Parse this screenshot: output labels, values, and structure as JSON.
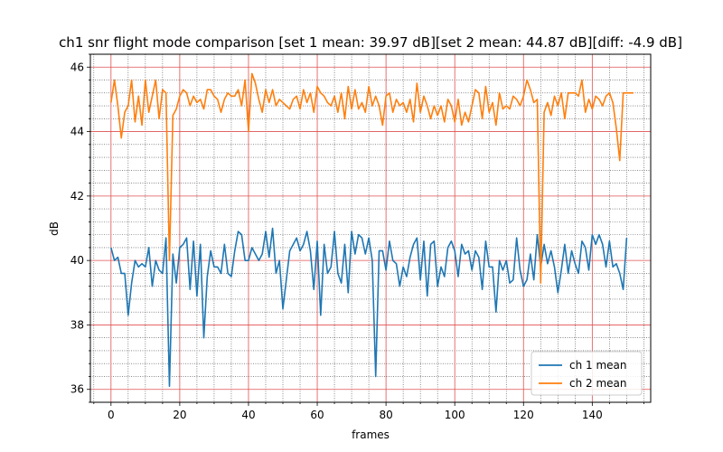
{
  "chart_data": {
    "type": "line",
    "title": "ch1 snr flight mode comparison [set 1 mean: 39.97 dB][set 2 mean: 44.87 dB][diff: -4.9 dB]",
    "xlabel": "frames",
    "ylabel": "dB",
    "xlim": [
      -6,
      157
    ],
    "ylim": [
      35.6,
      46.4
    ],
    "xticks": [
      0,
      20,
      40,
      60,
      80,
      100,
      120,
      140
    ],
    "yticks": [
      36,
      38,
      40,
      42,
      44,
      46
    ],
    "grid": {
      "major": true,
      "minor": true,
      "major_color": "#e05050",
      "minor_color": "#444444"
    },
    "legend_position": "lower-right",
    "series": [
      {
        "name": "ch 1 mean",
        "color": "#1f77b4",
        "values": [
          40.4,
          40.0,
          40.1,
          39.6,
          39.6,
          38.3,
          39.3,
          40.0,
          39.8,
          39.9,
          39.8,
          40.4,
          39.2,
          40.0,
          39.7,
          39.6,
          40.7,
          36.1,
          40.2,
          39.3,
          40.4,
          40.5,
          40.7,
          39.1,
          40.6,
          38.9,
          40.5,
          37.6,
          39.5,
          40.3,
          39.8,
          39.8,
          39.6,
          40.5,
          39.6,
          39.5,
          40.3,
          40.9,
          40.8,
          40.0,
          40.0,
          40.4,
          40.2,
          40.0,
          40.2,
          40.9,
          40.1,
          41.0,
          39.6,
          40.0,
          38.5,
          39.4,
          40.3,
          40.5,
          40.7,
          40.3,
          40.5,
          40.9,
          40.3,
          39.1,
          40.6,
          38.3,
          40.5,
          39.6,
          39.8,
          40.9,
          39.6,
          39.3,
          40.5,
          39.0,
          40.9,
          40.2,
          40.8,
          40.7,
          40.2,
          40.7,
          40.0,
          36.4,
          40.3,
          40.3,
          39.7,
          40.6,
          40.0,
          39.9,
          39.2,
          39.8,
          39.5,
          40.1,
          40.5,
          40.7,
          39.4,
          40.6,
          38.9,
          40.5,
          40.6,
          39.2,
          39.8,
          39.5,
          40.4,
          40.6,
          40.3,
          39.5,
          40.5,
          40.2,
          40.3,
          39.7,
          40.3,
          40.1,
          39.1,
          40.6,
          39.8,
          39.8,
          38.4,
          40.0,
          39.7,
          40.0,
          39.3,
          39.4,
          40.7,
          39.7,
          39.2,
          39.4,
          40.2,
          39.4,
          40.8,
          39.8,
          40.5,
          39.9,
          40.3,
          39.8,
          39.0,
          39.7,
          40.5,
          39.6,
          40.3,
          39.9,
          39.6,
          40.6,
          40.4,
          39.7,
          40.8,
          40.5,
          40.8,
          40.5,
          39.8,
          40.6,
          39.8,
          39.9,
          39.6,
          39.1,
          40.7
        ]
      },
      {
        "name": "ch 2 mean",
        "color": "#ff7f0e",
        "values": [
          44.9,
          45.6,
          44.8,
          43.8,
          44.6,
          44.8,
          45.6,
          44.3,
          45.1,
          44.2,
          45.6,
          44.6,
          45.1,
          45.6,
          44.4,
          45.3,
          45.2,
          40.0,
          44.5,
          44.7,
          45.1,
          45.3,
          45.2,
          44.8,
          45.1,
          44.9,
          45.0,
          44.7,
          45.3,
          45.3,
          45.1,
          45.0,
          44.6,
          45.0,
          45.2,
          45.1,
          45.1,
          45.3,
          44.8,
          45.6,
          44.0,
          45.8,
          45.5,
          45.0,
          44.6,
          45.3,
          44.9,
          45.3,
          44.8,
          45.0,
          44.9,
          44.8,
          44.7,
          45.0,
          45.1,
          44.7,
          45.3,
          44.9,
          45.2,
          44.6,
          45.4,
          45.2,
          45.1,
          44.9,
          44.8,
          45.1,
          44.6,
          45.2,
          44.4,
          45.4,
          44.7,
          45.3,
          44.7,
          44.9,
          44.6,
          45.4,
          44.8,
          45.1,
          44.8,
          44.2,
          45.1,
          45.2,
          44.6,
          45.0,
          44.8,
          44.9,
          44.6,
          45.0,
          44.3,
          45.5,
          44.6,
          45.1,
          44.8,
          44.4,
          44.8,
          44.5,
          44.8,
          44.3,
          45.0,
          44.8,
          44.3,
          45.0,
          44.2,
          44.6,
          44.3,
          44.8,
          45.3,
          45.2,
          44.4,
          45.4,
          44.6,
          44.9,
          44.2,
          45.2,
          44.7,
          44.8,
          44.7,
          45.1,
          45.0,
          44.8,
          45.1,
          45.6,
          45.3,
          44.9,
          45.0,
          39.3,
          44.6,
          44.9,
          44.5,
          45.1,
          44.8,
          45.2,
          44.4,
          45.2,
          45.2,
          45.2,
          45.1,
          45.6,
          44.6,
          45.0,
          44.7,
          45.1,
          45.0,
          44.8,
          45.1,
          45.2,
          44.9,
          44.1,
          43.1,
          45.2,
          45.2,
          45.2,
          45.2
        ]
      }
    ]
  }
}
